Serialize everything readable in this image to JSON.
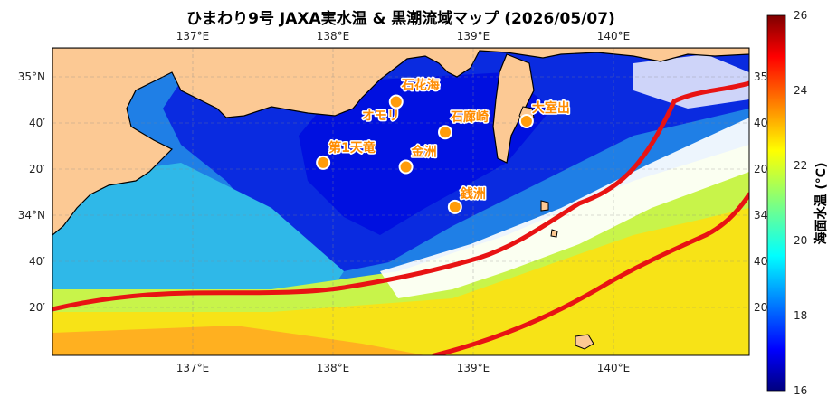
{
  "title": "ひまわり9号 JAXA実水温 & 黒潮流域マップ (2026/05/07)",
  "colors": {
    "land": "#fcc994",
    "coast": "#000000",
    "kuroshio": "#e81313",
    "spot": "#ff9c0a",
    "cloud": "#ffffff"
  },
  "lon_ticks": [
    "137°E",
    "138°E",
    "139°E",
    "140°E"
  ],
  "lat_ticks_left": [
    "35°N",
    "40′",
    "20′",
    "34°N",
    "40′",
    "20′"
  ],
  "lat_ticks_right": [
    "35°N",
    "40′",
    "20′",
    "34°N",
    "40′",
    "20′"
  ],
  "colorbar": {
    "label": "海面水温 (°C)",
    "min": 16,
    "max": 26,
    "ticks": [
      "16",
      "18",
      "20",
      "22",
      "24",
      "26"
    ],
    "colormap": "jet"
  },
  "spots": [
    {
      "name": "石花海",
      "lon": 138.45,
      "lat": 34.82
    },
    {
      "name": "オモリ",
      "lon": 138.45,
      "lat": 34.82
    },
    {
      "name": "石廊崎",
      "lon": 138.8,
      "lat": 34.6
    },
    {
      "name": "大室出",
      "lon": 139.38,
      "lat": 34.68
    },
    {
      "name": "第1天竜",
      "lon": 137.93,
      "lat": 34.38
    },
    {
      "name": "金洲",
      "lon": 138.52,
      "lat": 34.35
    },
    {
      "name": "銭洲",
      "lon": 138.87,
      "lat": 34.06
    }
  ]
}
